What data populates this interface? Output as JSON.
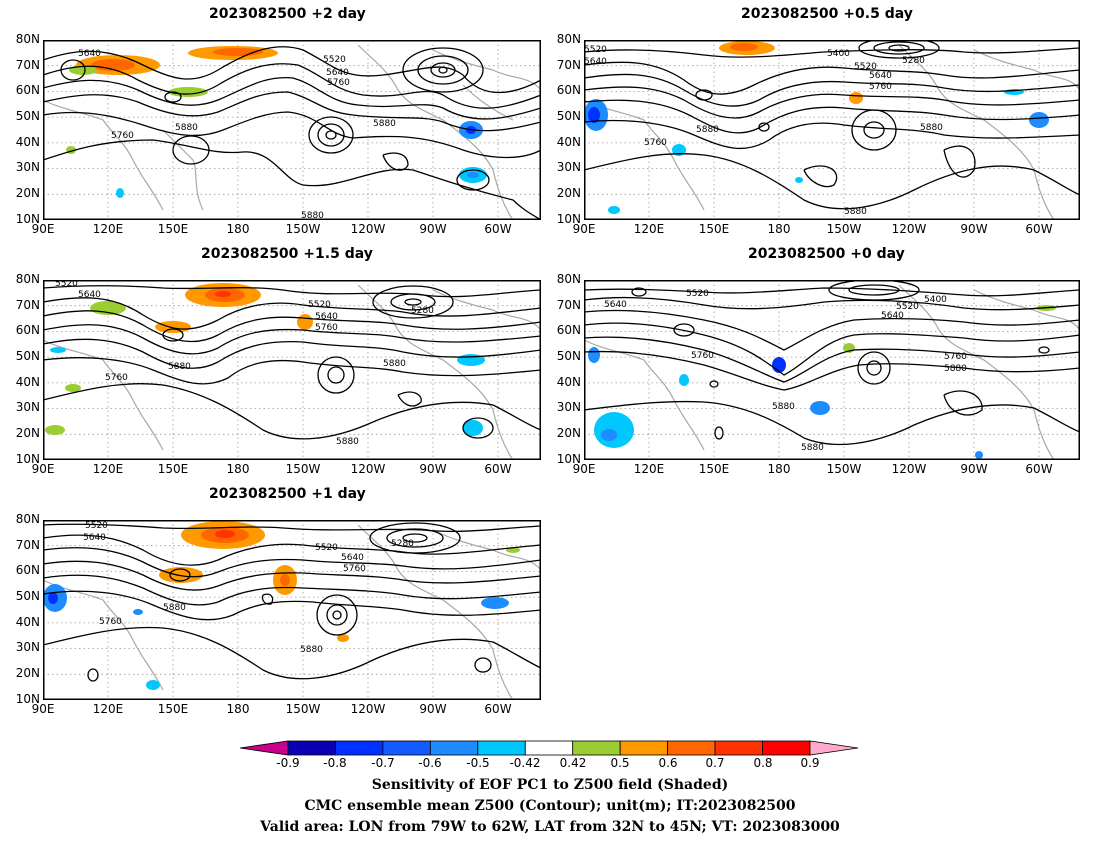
{
  "panels": [
    {
      "title": "2023082500 +2 day"
    },
    {
      "title": "2023082500 +0.5 day"
    },
    {
      "title": "2023082500 +1.5 day"
    },
    {
      "title": "2023082500 +0 day"
    },
    {
      "title": "2023082500 +1 day"
    }
  ],
  "axes": {
    "lat_labels": [
      "80N",
      "70N",
      "60N",
      "50N",
      "40N",
      "30N",
      "20N",
      "10N"
    ],
    "lon_labels": [
      "90E",
      "120E",
      "150E",
      "180",
      "150W",
      "120W",
      "90W",
      "60W"
    ]
  },
  "contour_labels": {
    "p0": [
      "5640",
      "5520",
      "5640",
      "5760",
      "5760",
      "5880",
      "5880",
      "5880"
    ],
    "p1": [
      "5520",
      "5640",
      "5400",
      "5280",
      "5520",
      "5640",
      "5760",
      "5880",
      "5760",
      "5880",
      "5880"
    ],
    "p2": [
      "5520",
      "5640",
      "5520",
      "5640",
      "5760",
      "5280",
      "5760",
      "5880",
      "5880",
      "5880"
    ],
    "p3": [
      "5640",
      "5520",
      "5400",
      "5520",
      "5640",
      "5760",
      "5760",
      "5880",
      "5880",
      "5880"
    ],
    "p4": [
      "5520",
      "5640",
      "5520",
      "5280",
      "5640",
      "5760",
      "5880",
      "5760",
      "5880"
    ]
  },
  "colorbar": {
    "labels": [
      "-0.9",
      "-0.8",
      "-0.7",
      "-0.6",
      "-0.5",
      "-0.42",
      "0.42",
      "0.5",
      "0.6",
      "0.7",
      "0.8",
      "0.9"
    ],
    "colors": [
      "#0a00b4",
      "#0032ff",
      "#145aff",
      "#1e8cff",
      "#00c8ff",
      "#ffffff",
      "#9acd32",
      "#ff9900",
      "#ff6600",
      "#ff3300",
      "#ff0000"
    ],
    "under_color": "#c8008c",
    "over_color": "#ffaacc"
  },
  "caption": {
    "line1": "Sensitivity of EOF PC1 to Z500 field (Shaded)",
    "line2": "CMC ensemble mean Z500 (Contour); unit(m); IT:2023082500",
    "line3": "Valid area: LON from 79W to 62W, LAT from 32N to 45N; VT: 2023083000"
  }
}
